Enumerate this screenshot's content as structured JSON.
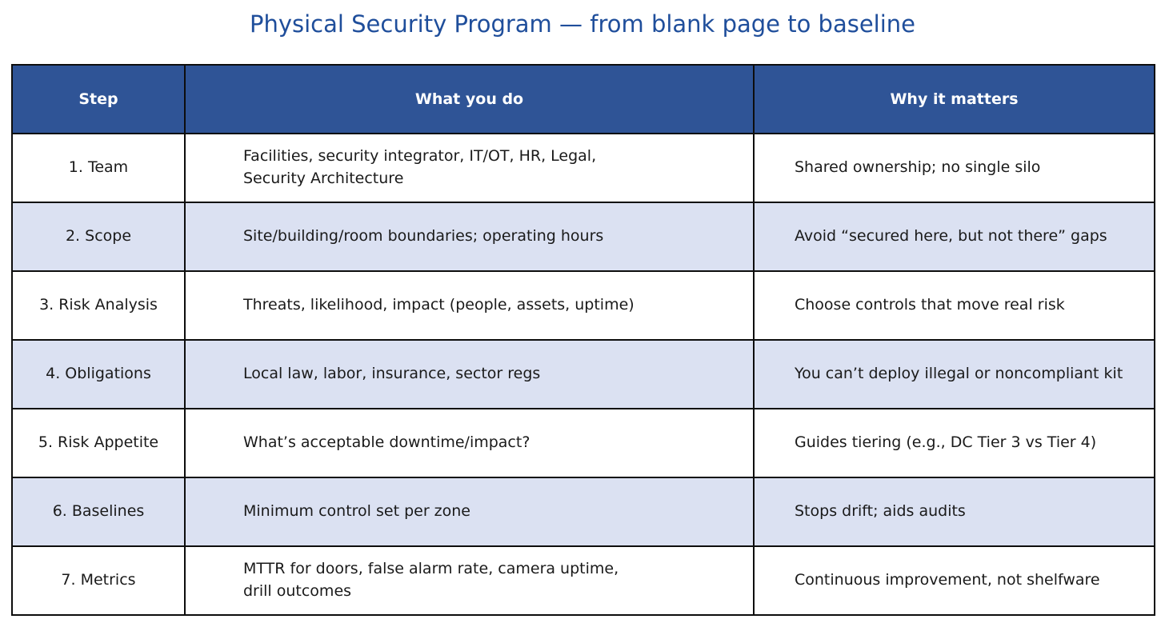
{
  "title": "Physical Security Program — from blank page to baseline",
  "colors": {
    "title_text": "#1F4E9B",
    "header_bg": "#2F5496",
    "header_text": "#FFFFFF",
    "row_bg": "#FFFFFF",
    "row_alt_bg": "#DBE1F2",
    "border": "#0D0D0D",
    "body_text": "#1A1A1A"
  },
  "chart_data": {
    "type": "table",
    "title": "Physical Security Program — from blank page to baseline",
    "layout": {
      "grid": "on",
      "header_row": true,
      "zebra_striping": true
    },
    "columns": [
      "Step",
      "What you do",
      "Why it matters"
    ],
    "rows": [
      [
        "1. Team",
        "Facilities, security integrator, IT/OT, HR, Legal,\nSecurity Architecture",
        "Shared ownership; no single silo"
      ],
      [
        "2. Scope",
        "Site/building/room boundaries; operating hours",
        "Avoid “secured here, but not there” gaps"
      ],
      [
        "3. Risk Analysis",
        "Threats, likelihood, impact (people, assets, uptime)",
        "Choose controls that move real risk"
      ],
      [
        "4. Obligations",
        "Local law, labor, insurance, sector regs",
        "You can’t deploy illegal or noncompliant kit"
      ],
      [
        "5. Risk Appetite",
        "What’s acceptable downtime/impact?",
        "Guides tiering (e.g., DC Tier 3 vs Tier 4)"
      ],
      [
        "6. Baselines",
        "Minimum control set per zone",
        "Stops drift; aids audits"
      ],
      [
        "7. Metrics",
        "MTTR for doors, false alarm rate, camera uptime,\ndrill outcomes",
        "Continuous improvement, not shelfware"
      ]
    ]
  }
}
